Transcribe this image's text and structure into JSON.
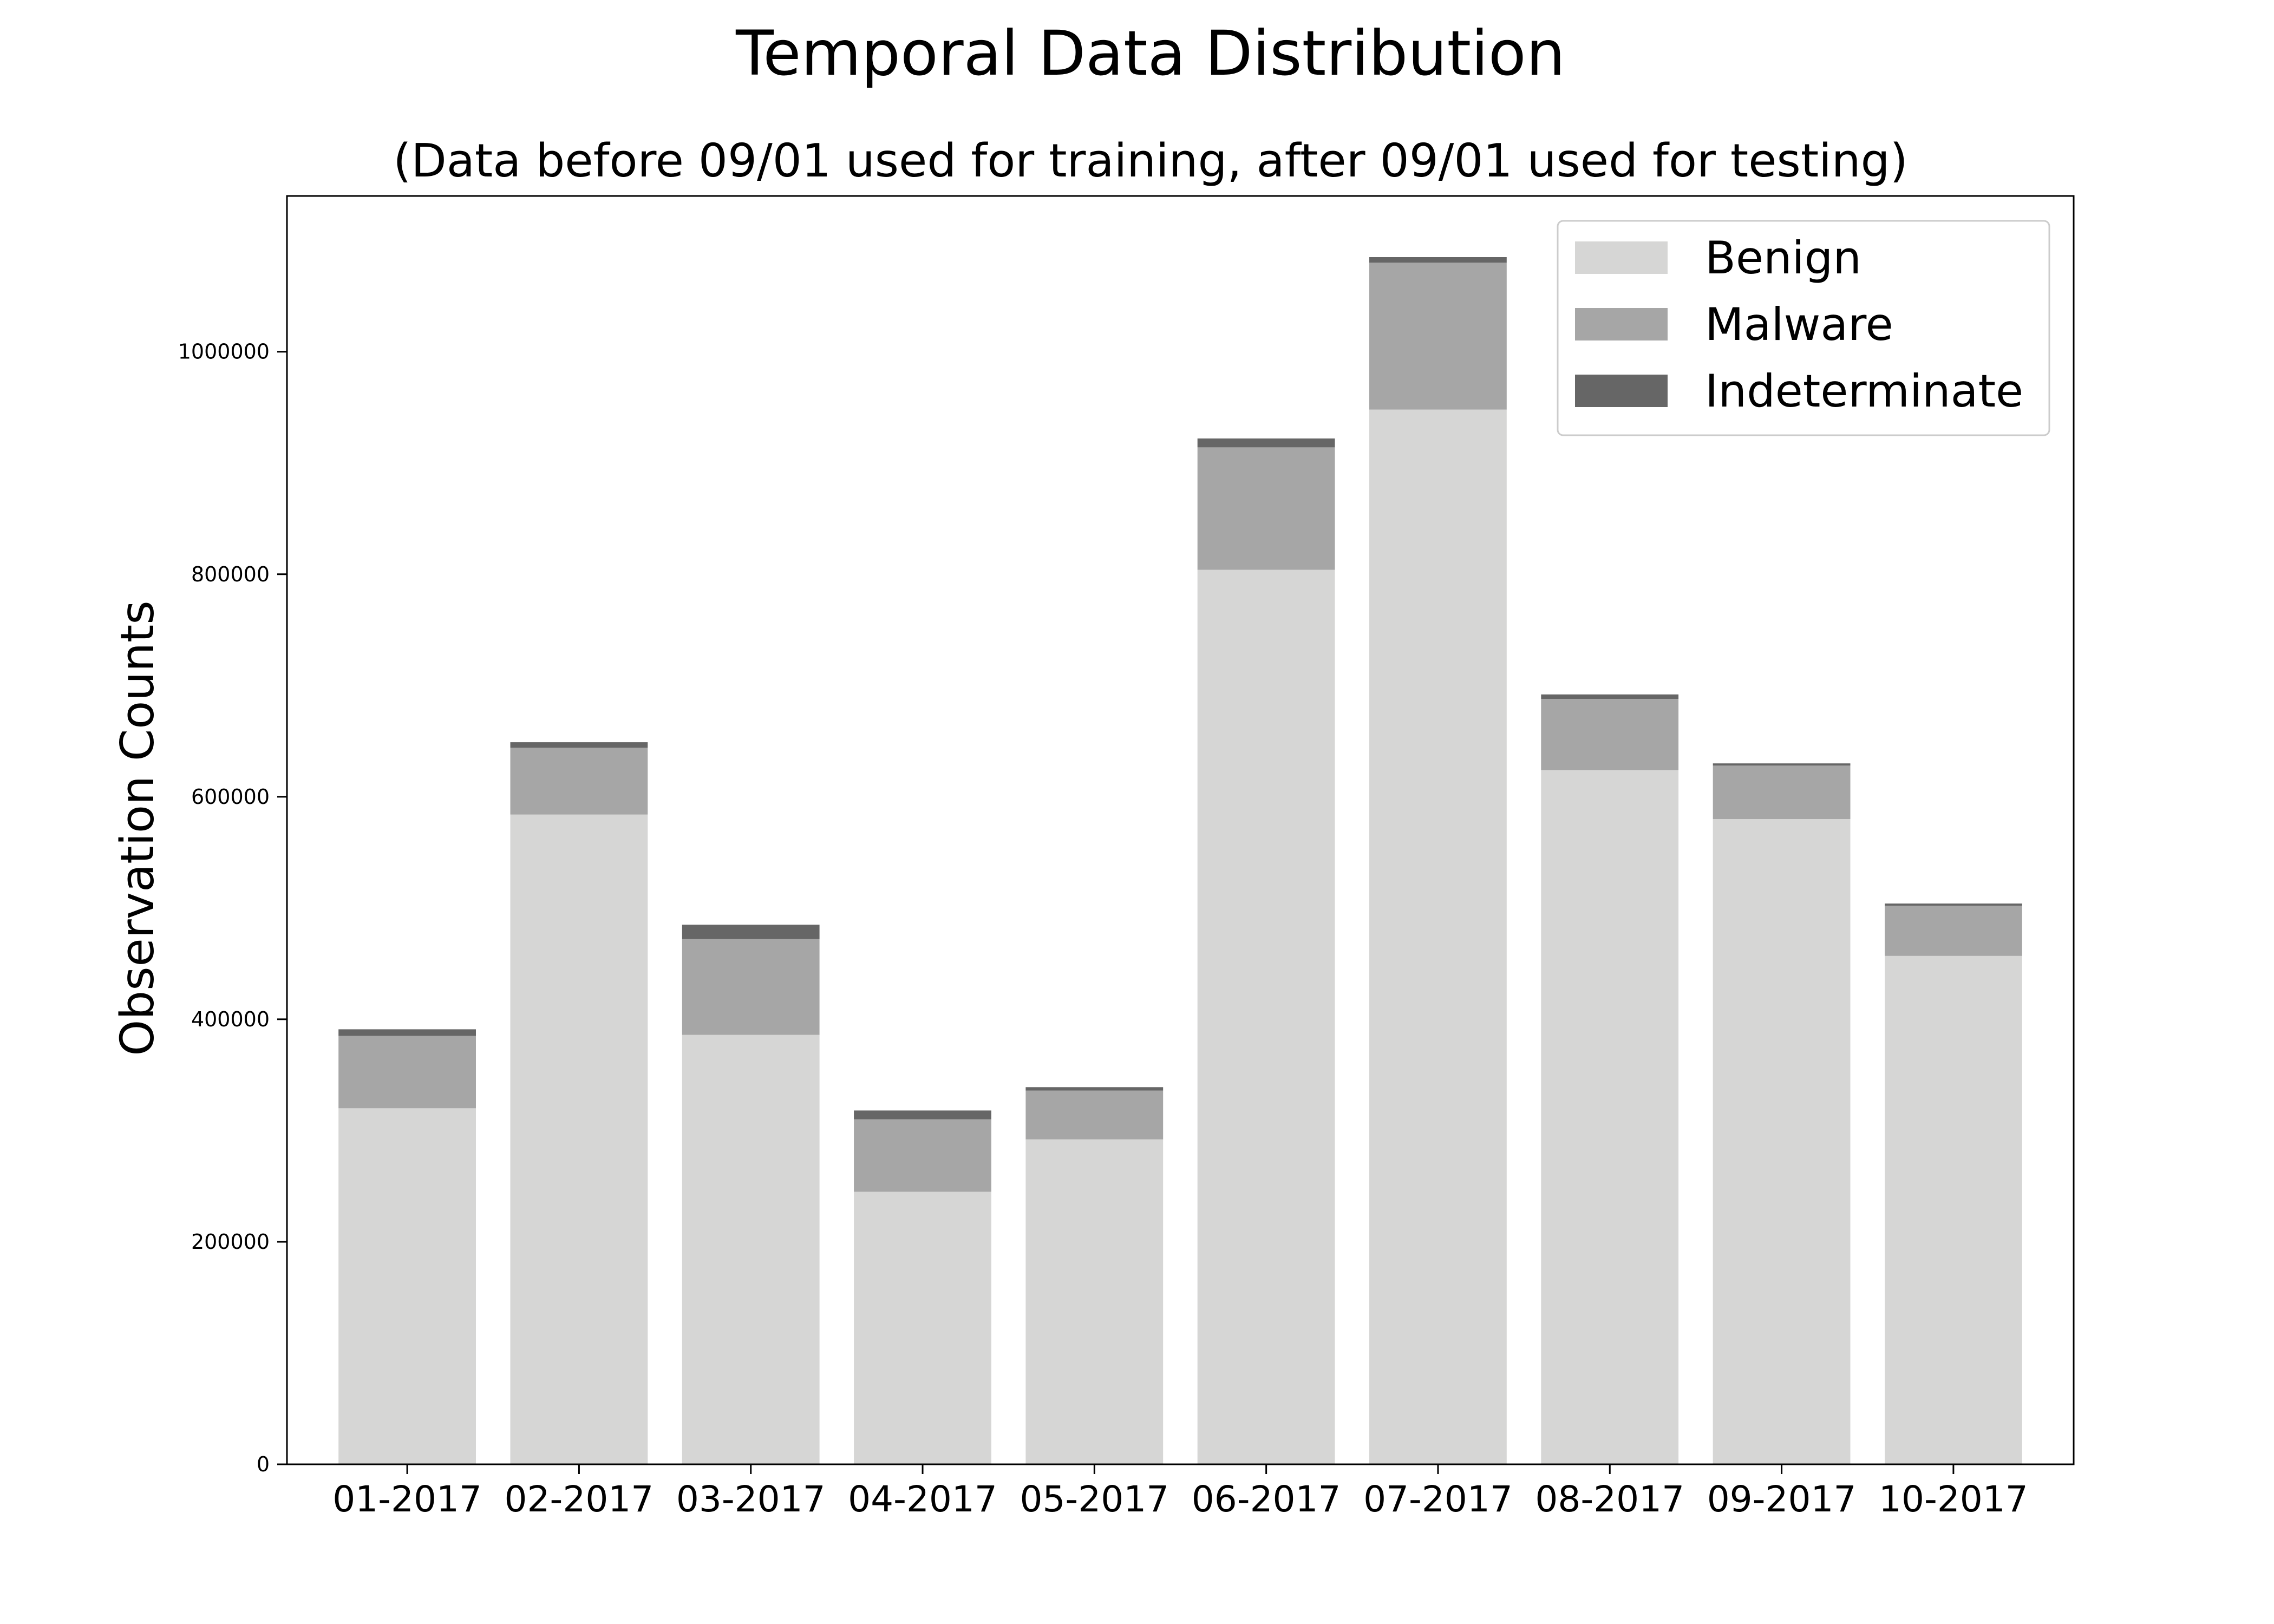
{
  "chart_data": {
    "type": "bar",
    "stacked": true,
    "title": "Temporal Data Distribution",
    "subtitle": "(Data before 09/01 used for training, after 09/01 used for testing)",
    "xlabel": "",
    "ylabel": "Observation Counts",
    "ylim": [
      0,
      1140000
    ],
    "yticks": [
      0,
      200000,
      400000,
      600000,
      800000,
      1000000
    ],
    "ytick_labels": [
      "0",
      "200000",
      "400000",
      "600000",
      "800000",
      "1000000"
    ],
    "grid": false,
    "legend_position": "top-right",
    "categories": [
      "01-2017",
      "02-2017",
      "03-2017",
      "04-2017",
      "05-2017",
      "06-2017",
      "07-2017",
      "08-2017",
      "09-2017",
      "10-2017"
    ],
    "series": [
      {
        "name": "Benign",
        "color": "#d6d6d5",
        "values": [
          320000,
          584000,
          386000,
          245000,
          292000,
          804000,
          948000,
          624000,
          580000,
          457000
        ]
      },
      {
        "name": "Malware",
        "color": "#a6a6a6",
        "values": [
          65000,
          60000,
          86000,
          65000,
          44000,
          110000,
          132000,
          64000,
          48000,
          45000
        ]
      },
      {
        "name": "Indeterminate",
        "color": "#666666",
        "values": [
          6000,
          5000,
          13000,
          8000,
          3000,
          8000,
          5000,
          4000,
          2000,
          2000
        ]
      }
    ]
  }
}
